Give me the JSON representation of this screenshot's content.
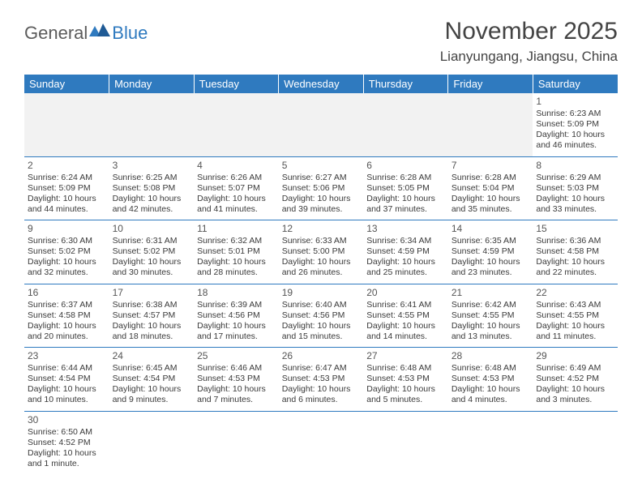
{
  "logo": {
    "part1": "General",
    "part2": "Blue"
  },
  "title": "November 2025",
  "location": "Lianyungang, Jiangsu, China",
  "colors": {
    "header_bg": "#2f7abf",
    "header_text": "#ffffff",
    "border": "#2f7abf",
    "text": "#3a3a3a",
    "first_row_bg": "#f2f2f2"
  },
  "weekdays": [
    "Sunday",
    "Monday",
    "Tuesday",
    "Wednesday",
    "Thursday",
    "Friday",
    "Saturday"
  ],
  "startOffset": 6,
  "daysInMonth": 30,
  "days": {
    "1": {
      "sunrise": "6:23 AM",
      "sunset": "5:09 PM",
      "daylight": "10 hours and 46 minutes."
    },
    "2": {
      "sunrise": "6:24 AM",
      "sunset": "5:09 PM",
      "daylight": "10 hours and 44 minutes."
    },
    "3": {
      "sunrise": "6:25 AM",
      "sunset": "5:08 PM",
      "daylight": "10 hours and 42 minutes."
    },
    "4": {
      "sunrise": "6:26 AM",
      "sunset": "5:07 PM",
      "daylight": "10 hours and 41 minutes."
    },
    "5": {
      "sunrise": "6:27 AM",
      "sunset": "5:06 PM",
      "daylight": "10 hours and 39 minutes."
    },
    "6": {
      "sunrise": "6:28 AM",
      "sunset": "5:05 PM",
      "daylight": "10 hours and 37 minutes."
    },
    "7": {
      "sunrise": "6:28 AM",
      "sunset": "5:04 PM",
      "daylight": "10 hours and 35 minutes."
    },
    "8": {
      "sunrise": "6:29 AM",
      "sunset": "5:03 PM",
      "daylight": "10 hours and 33 minutes."
    },
    "9": {
      "sunrise": "6:30 AM",
      "sunset": "5:02 PM",
      "daylight": "10 hours and 32 minutes."
    },
    "10": {
      "sunrise": "6:31 AM",
      "sunset": "5:02 PM",
      "daylight": "10 hours and 30 minutes."
    },
    "11": {
      "sunrise": "6:32 AM",
      "sunset": "5:01 PM",
      "daylight": "10 hours and 28 minutes."
    },
    "12": {
      "sunrise": "6:33 AM",
      "sunset": "5:00 PM",
      "daylight": "10 hours and 26 minutes."
    },
    "13": {
      "sunrise": "6:34 AM",
      "sunset": "4:59 PM",
      "daylight": "10 hours and 25 minutes."
    },
    "14": {
      "sunrise": "6:35 AM",
      "sunset": "4:59 PM",
      "daylight": "10 hours and 23 minutes."
    },
    "15": {
      "sunrise": "6:36 AM",
      "sunset": "4:58 PM",
      "daylight": "10 hours and 22 minutes."
    },
    "16": {
      "sunrise": "6:37 AM",
      "sunset": "4:58 PM",
      "daylight": "10 hours and 20 minutes."
    },
    "17": {
      "sunrise": "6:38 AM",
      "sunset": "4:57 PM",
      "daylight": "10 hours and 18 minutes."
    },
    "18": {
      "sunrise": "6:39 AM",
      "sunset": "4:56 PM",
      "daylight": "10 hours and 17 minutes."
    },
    "19": {
      "sunrise": "6:40 AM",
      "sunset": "4:56 PM",
      "daylight": "10 hours and 15 minutes."
    },
    "20": {
      "sunrise": "6:41 AM",
      "sunset": "4:55 PM",
      "daylight": "10 hours and 14 minutes."
    },
    "21": {
      "sunrise": "6:42 AM",
      "sunset": "4:55 PM",
      "daylight": "10 hours and 13 minutes."
    },
    "22": {
      "sunrise": "6:43 AM",
      "sunset": "4:55 PM",
      "daylight": "10 hours and 11 minutes."
    },
    "23": {
      "sunrise": "6:44 AM",
      "sunset": "4:54 PM",
      "daylight": "10 hours and 10 minutes."
    },
    "24": {
      "sunrise": "6:45 AM",
      "sunset": "4:54 PM",
      "daylight": "10 hours and 9 minutes."
    },
    "25": {
      "sunrise": "6:46 AM",
      "sunset": "4:53 PM",
      "daylight": "10 hours and 7 minutes."
    },
    "26": {
      "sunrise": "6:47 AM",
      "sunset": "4:53 PM",
      "daylight": "10 hours and 6 minutes."
    },
    "27": {
      "sunrise": "6:48 AM",
      "sunset": "4:53 PM",
      "daylight": "10 hours and 5 minutes."
    },
    "28": {
      "sunrise": "6:48 AM",
      "sunset": "4:53 PM",
      "daylight": "10 hours and 4 minutes."
    },
    "29": {
      "sunrise": "6:49 AM",
      "sunset": "4:52 PM",
      "daylight": "10 hours and 3 minutes."
    },
    "30": {
      "sunrise": "6:50 AM",
      "sunset": "4:52 PM",
      "daylight": "10 hours and 1 minute."
    }
  },
  "labels": {
    "sunrise": "Sunrise: ",
    "sunset": "Sunset: ",
    "daylight": "Daylight: "
  }
}
